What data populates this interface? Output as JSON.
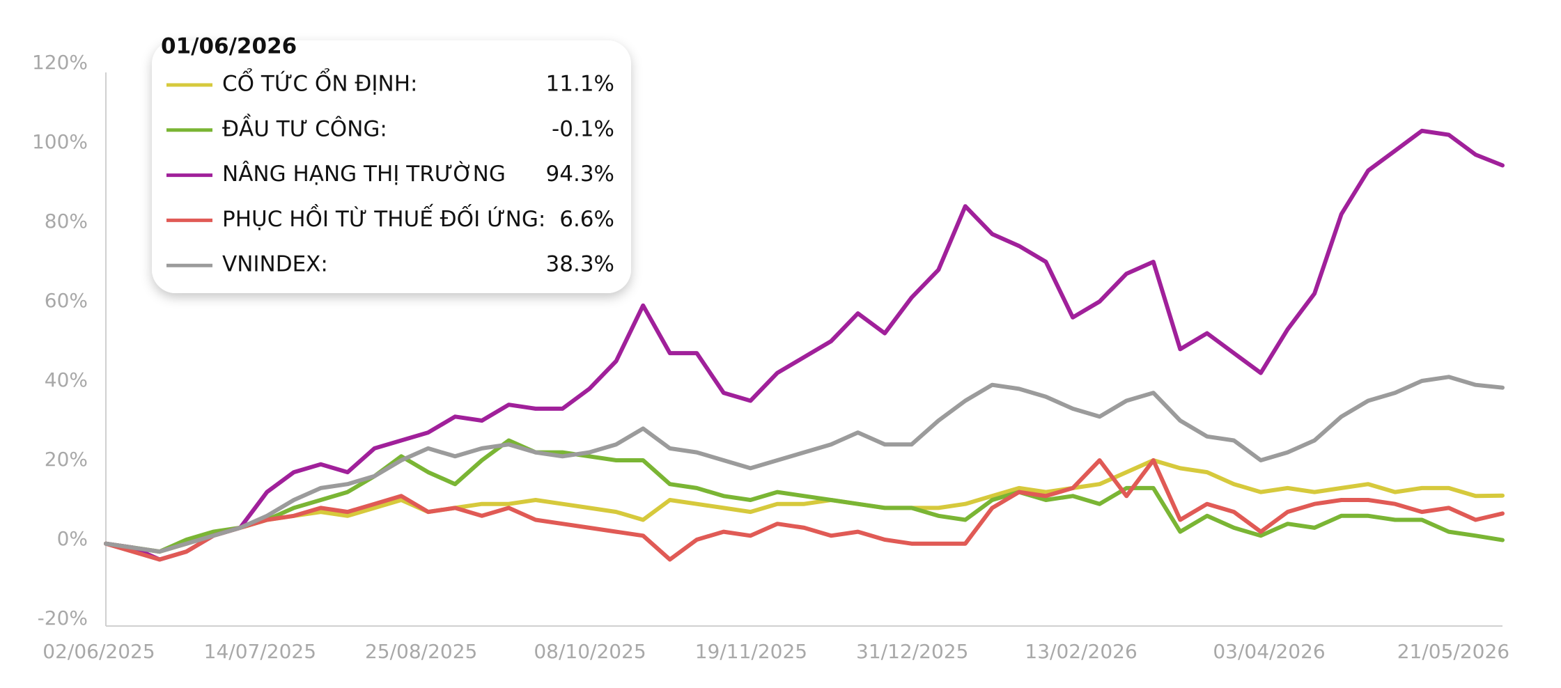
{
  "chart_data": {
    "type": "line",
    "x": [
      "02/06/2025",
      "09/06/2025",
      "16/06/2025",
      "23/06/2025",
      "30/06/2025",
      "07/07/2025",
      "14/07/2025",
      "21/07/2025",
      "28/07/2025",
      "04/08/2025",
      "11/08/2025",
      "18/08/2025",
      "25/08/2025",
      "01/09/2025",
      "08/09/2025",
      "15/09/2025",
      "22/09/2025",
      "29/09/2025",
      "06/10/2025",
      "13/10/2025",
      "20/10/2025",
      "27/10/2025",
      "03/11/2025",
      "10/11/2025",
      "17/11/2025",
      "24/11/2025",
      "01/12/2025",
      "08/12/2025",
      "15/12/2025",
      "22/12/2025",
      "29/12/2025",
      "05/01/2026",
      "12/01/2026",
      "19/01/2026",
      "26/01/2026",
      "02/02/2026",
      "09/02/2026",
      "16/02/2026",
      "23/02/2026",
      "02/03/2026",
      "09/03/2026",
      "16/03/2026",
      "23/03/2026",
      "30/03/2026",
      "06/04/2026",
      "13/04/2026",
      "20/04/2026",
      "27/04/2026",
      "04/05/2026",
      "11/05/2026",
      "18/05/2026",
      "25/05/2026",
      "01/06/2026"
    ],
    "xlim": [
      "02/06/2025",
      "01/06/2026"
    ],
    "xticks": [
      "02/06/2025",
      "14/07/2025",
      "25/08/2025",
      "08/10/2025",
      "19/11/2025",
      "31/12/2025",
      "13/02/2026",
      "03/04/2026",
      "21/05/2026"
    ],
    "ylim": [
      -20,
      120
    ],
    "yticks": [
      {
        "value": -20,
        "label": "-20%"
      },
      {
        "value": 0,
        "label": "0%"
      },
      {
        "value": 20,
        "label": "20%"
      },
      {
        "value": 40,
        "label": "40%"
      },
      {
        "value": 60,
        "label": "60%"
      },
      {
        "value": 80,
        "label": "80%"
      },
      {
        "value": 100,
        "label": "100%"
      },
      {
        "value": 120,
        "label": "120%"
      }
    ],
    "grid": false,
    "series": [
      {
        "name": "CỔ TỨC ỔN ĐỊNH:",
        "color": "#d6c93c",
        "values": [
          -1,
          -2,
          -3,
          -1,
          1,
          3,
          5,
          6,
          7,
          6,
          8,
          10,
          7,
          8,
          9,
          9,
          10,
          9,
          8,
          7,
          5,
          10,
          9,
          8,
          7,
          9,
          9,
          10,
          9,
          8,
          8,
          8,
          9,
          11,
          13,
          12,
          13,
          14,
          17,
          20,
          18,
          17,
          14,
          12,
          13,
          12,
          13,
          14,
          12,
          13,
          13,
          11,
          11.1
        ],
        "value_labels": [
          null,
          null,
          null,
          null,
          null,
          null,
          null,
          null,
          null,
          null,
          null,
          null,
          null,
          null,
          null,
          null,
          null,
          null,
          null,
          null,
          null,
          null,
          null,
          null,
          null,
          null,
          null,
          null,
          null,
          null,
          null,
          null,
          null,
          null,
          null,
          null,
          null,
          null,
          null,
          null,
          null,
          null,
          null,
          null,
          null,
          null,
          null,
          null,
          null,
          null,
          null,
          null,
          "11.1%"
        ]
      },
      {
        "name": "ĐẦU TƯ CÔNG:",
        "color": "#7ab534",
        "values": [
          -1,
          -2,
          -3,
          0,
          2,
          3,
          5,
          8,
          10,
          12,
          16,
          21,
          17,
          14,
          20,
          25,
          22,
          22,
          21,
          20,
          20,
          14,
          13,
          11,
          10,
          12,
          11,
          10,
          9,
          8,
          8,
          6,
          5,
          10,
          12,
          10,
          11,
          9,
          13,
          13,
          2,
          6,
          3,
          1,
          4,
          3,
          6,
          6,
          5,
          5,
          2,
          1,
          -0.1
        ],
        "value_labels": [
          null,
          null,
          null,
          null,
          null,
          null,
          null,
          null,
          null,
          null,
          null,
          null,
          null,
          null,
          null,
          null,
          null,
          null,
          null,
          null,
          null,
          null,
          null,
          null,
          null,
          null,
          null,
          null,
          null,
          null,
          null,
          null,
          null,
          null,
          null,
          null,
          null,
          null,
          null,
          null,
          null,
          null,
          null,
          null,
          null,
          null,
          null,
          null,
          null,
          null,
          null,
          null,
          "-0.1%"
        ]
      },
      {
        "name": "NÂNG HẠNG THỊ TRƯỜNG",
        "color": "#a0209a",
        "values": [
          -1,
          -2,
          -5,
          -3,
          1,
          3,
          12,
          17,
          19,
          17,
          23,
          25,
          27,
          31,
          30,
          34,
          33,
          33,
          38,
          45,
          59,
          47,
          47,
          37,
          35,
          42,
          46,
          50,
          57,
          52,
          61,
          68,
          84,
          77,
          74,
          70,
          56,
          60,
          67,
          70,
          48,
          52,
          47,
          42,
          53,
          62,
          82,
          93,
          98,
          103,
          102,
          97,
          94.3
        ],
        "value_labels": [
          null,
          null,
          null,
          null,
          null,
          null,
          null,
          null,
          null,
          null,
          null,
          null,
          null,
          null,
          null,
          null,
          null,
          null,
          null,
          null,
          null,
          null,
          null,
          null,
          null,
          null,
          null,
          null,
          null,
          null,
          null,
          null,
          null,
          null,
          null,
          null,
          null,
          null,
          null,
          null,
          null,
          null,
          null,
          null,
          null,
          null,
          null,
          null,
          null,
          null,
          null,
          null,
          "94.3%"
        ]
      },
      {
        "name": "PHỤC HỒI TỪ THUẾ ĐỐI ỨNG:",
        "color": "#e05a55",
        "values": [
          -1,
          -3,
          -5,
          -3,
          1,
          3,
          5,
          6,
          8,
          7,
          9,
          11,
          7,
          8,
          6,
          8,
          5,
          4,
          3,
          2,
          1,
          -5,
          0,
          2,
          1,
          4,
          3,
          1,
          2,
          0,
          -1,
          -1,
          -1,
          8,
          12,
          11,
          13,
          20,
          11,
          20,
          5,
          9,
          7,
          2,
          7,
          9,
          10,
          10,
          9,
          7,
          8,
          5,
          6.6
        ],
        "value_labels": [
          null,
          null,
          null,
          null,
          null,
          null,
          null,
          null,
          null,
          null,
          null,
          null,
          null,
          null,
          null,
          null,
          null,
          null,
          null,
          null,
          null,
          null,
          null,
          null,
          null,
          null,
          null,
          null,
          null,
          null,
          null,
          null,
          null,
          null,
          null,
          null,
          null,
          null,
          null,
          null,
          null,
          null,
          null,
          null,
          null,
          null,
          null,
          null,
          null,
          null,
          null,
          null,
          "6.6%"
        ]
      },
      {
        "name": " VNINDEX:",
        "color": "#9b9b9b",
        "values": [
          -1,
          -2,
          -3,
          -1,
          1,
          3,
          6,
          10,
          13,
          14,
          16,
          20,
          23,
          21,
          23,
          24,
          22,
          21,
          22,
          24,
          28,
          23,
          22,
          20,
          18,
          20,
          22,
          24,
          27,
          24,
          24,
          30,
          35,
          39,
          38,
          36,
          33,
          31,
          35,
          37,
          30,
          26,
          25,
          20,
          22,
          25,
          31,
          35,
          37,
          40,
          41,
          39,
          38.3
        ],
        "value_labels": [
          null,
          null,
          null,
          null,
          null,
          null,
          null,
          null,
          null,
          null,
          null,
          null,
          null,
          null,
          null,
          null,
          null,
          null,
          null,
          null,
          null,
          null,
          null,
          null,
          null,
          null,
          null,
          null,
          null,
          null,
          null,
          null,
          null,
          null,
          null,
          null,
          null,
          null,
          null,
          null,
          null,
          null,
          null,
          null,
          null,
          null,
          null,
          null,
          null,
          null,
          null,
          null,
          "38.3%"
        ]
      }
    ]
  }
}
